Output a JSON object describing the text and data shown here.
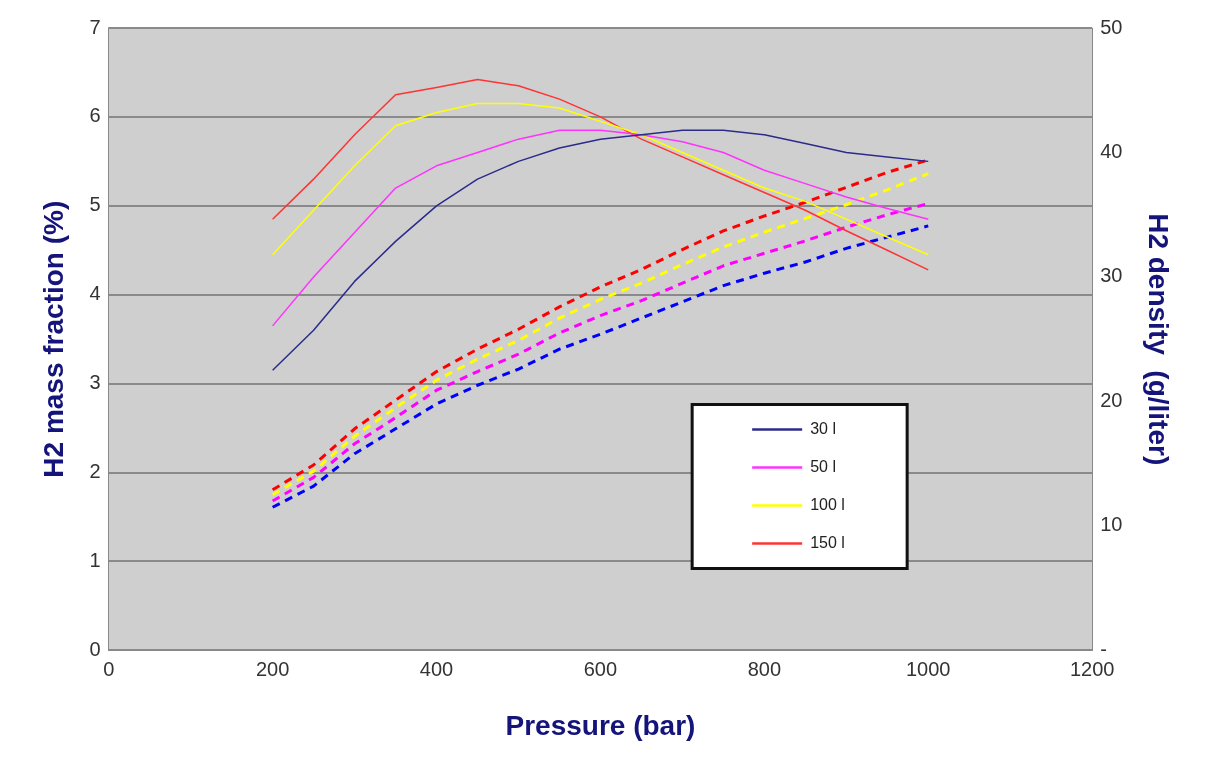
{
  "chart_data": {
    "type": "line",
    "xlabel": "Pressure (bar)",
    "ylabel": "H2 mass fraction (%)",
    "y2label": "H2 density  (g/liter)",
    "x": [
      200,
      250,
      300,
      350,
      400,
      450,
      500,
      550,
      600,
      650,
      700,
      750,
      800,
      850,
      900,
      950,
      1000
    ],
    "series": [
      {
        "name": "30 l",
        "color": "#2b2b8c",
        "line_style": "solid",
        "values": [
          3.15,
          3.6,
          4.15,
          4.6,
          5.0,
          5.3,
          5.5,
          5.65,
          5.75,
          5.8,
          5.85,
          5.85,
          5.8,
          5.7,
          5.6,
          5.55,
          5.5
        ]
      },
      {
        "name": "50 l",
        "color": "#ff33ff",
        "line_style": "solid",
        "values": [
          3.65,
          4.2,
          4.7,
          5.2,
          5.45,
          5.6,
          5.75,
          5.85,
          5.85,
          5.8,
          5.72,
          5.6,
          5.4,
          5.25,
          5.1,
          4.97,
          4.85
        ]
      },
      {
        "name": "100 l",
        "color": "#ffff00",
        "line_style": "solid",
        "values": [
          4.45,
          4.95,
          5.45,
          5.9,
          6.05,
          6.15,
          6.15,
          6.1,
          5.95,
          5.8,
          5.6,
          5.4,
          5.2,
          5.05,
          4.85,
          4.65,
          4.45
        ]
      },
      {
        "name": "150 l",
        "color": "#ff3333",
        "line_style": "solid",
        "values": [
          4.85,
          5.3,
          5.8,
          6.25,
          6.33,
          6.42,
          6.35,
          6.2,
          6.0,
          5.75,
          5.55,
          5.35,
          5.15,
          4.95,
          4.72,
          4.5,
          4.28
        ]
      },
      {
        "color": "#0000ff",
        "axis": "y2",
        "line_style": "dashed",
        "values": [
          11.5,
          13.2,
          15.8,
          17.8,
          19.8,
          21.3,
          22.6,
          24.2,
          25.4,
          26.7,
          28.0,
          29.3,
          30.3,
          31.2,
          32.3,
          33.2,
          34.1
        ]
      },
      {
        "color": "#ff00ff",
        "axis": "y2",
        "line_style": "dashed",
        "values": [
          12.0,
          13.9,
          16.6,
          18.7,
          20.9,
          22.4,
          23.8,
          25.5,
          26.9,
          28.1,
          29.5,
          30.9,
          31.9,
          32.9,
          34.0,
          35.0,
          35.9
        ]
      },
      {
        "color": "#ffff00",
        "axis": "y2",
        "line_style": "dashed",
        "values": [
          12.5,
          14.4,
          17.2,
          19.5,
          21.7,
          23.4,
          24.9,
          26.7,
          28.2,
          29.5,
          31.0,
          32.4,
          33.6,
          34.7,
          35.8,
          37.0,
          38.3
        ]
      },
      {
        "color": "#ff0000",
        "axis": "y2",
        "line_style": "dashed",
        "values": [
          12.9,
          14.9,
          17.8,
          20.1,
          22.4,
          24.2,
          25.8,
          27.6,
          29.2,
          30.6,
          32.2,
          33.7,
          34.9,
          36.0,
          37.2,
          38.4,
          39.4
        ]
      }
    ],
    "xlim": [
      0,
      1200
    ],
    "xticks": [
      0,
      200,
      400,
      600,
      800,
      1000,
      1200
    ],
    "ylim": [
      0,
      7
    ],
    "yticks": [
      0,
      1,
      2,
      3,
      4,
      5,
      6,
      7
    ],
    "y2lim": [
      0,
      50
    ],
    "y2ticks": [
      {
        "value": 0,
        "label": "-"
      },
      10,
      20,
      30,
      40,
      50
    ],
    "grid": "y",
    "legend": "bottom right",
    "marker": "none"
  }
}
